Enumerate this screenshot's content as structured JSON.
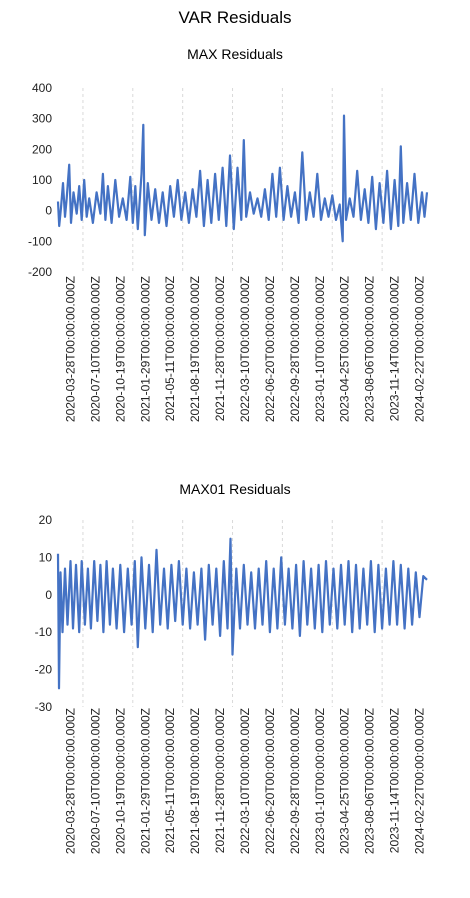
{
  "figure_title": "VAR Residuals",
  "chart_data": [
    {
      "type": "line",
      "title": "MAX Residuals",
      "series_color": "#4472C4",
      "ylim": [
        -200,
        400
      ],
      "yticks": [
        400,
        300,
        200,
        100,
        0,
        -100,
        -200
      ],
      "grid": "vertical dashed",
      "xticks": [
        "2020-03-28T00:00:00.000Z",
        "2020-07-10T00:00:00.000Z",
        "2020-10-19T00:00:00.000Z",
        "2021-01-29T00:00:00.000Z",
        "2021-05-11T00:00:00.000Z",
        "2021-08-19T00:00:00.000Z",
        "2021-11-28T00:00:00.000Z",
        "2022-03-10T00:00:00.000Z",
        "2022-06-20T00:00:00.000Z",
        "2022-09-28T00:00:00.000Z",
        "2023-01-10T00:00:00.000Z",
        "2023-04-25T00:00:00.000Z",
        "2023-08-06T00:00:00.000Z",
        "2023-11-14T00:00:00.000Z",
        "2024-02-22T00:00:00.000Z"
      ],
      "points": [
        [
          0,
          30
        ],
        [
          0.05,
          -50
        ],
        [
          0.12,
          10
        ],
        [
          0.2,
          90
        ],
        [
          0.28,
          -20
        ],
        [
          0.35,
          40
        ],
        [
          0.45,
          150
        ],
        [
          0.52,
          -40
        ],
        [
          0.62,
          60
        ],
        [
          0.75,
          -10
        ],
        [
          0.85,
          80
        ],
        [
          0.95,
          -30
        ],
        [
          1.05,
          100
        ],
        [
          1.15,
          -20
        ],
        [
          1.25,
          40
        ],
        [
          1.4,
          -40
        ],
        [
          1.55,
          60
        ],
        [
          1.7,
          -10
        ],
        [
          1.8,
          120
        ],
        [
          1.9,
          -30
        ],
        [
          2.0,
          80
        ],
        [
          2.15,
          -40
        ],
        [
          2.3,
          100
        ],
        [
          2.45,
          -20
        ],
        [
          2.6,
          40
        ],
        [
          2.75,
          -30
        ],
        [
          2.9,
          110
        ],
        [
          3.0,
          -40
        ],
        [
          3.1,
          80
        ],
        [
          3.2,
          -60
        ],
        [
          3.35,
          120
        ],
        [
          3.42,
          280
        ],
        [
          3.48,
          -80
        ],
        [
          3.6,
          90
        ],
        [
          3.75,
          -30
        ],
        [
          3.9,
          70
        ],
        [
          4.05,
          -40
        ],
        [
          4.2,
          60
        ],
        [
          4.35,
          -50
        ],
        [
          4.5,
          80
        ],
        [
          4.65,
          -20
        ],
        [
          4.8,
          100
        ],
        [
          4.95,
          -30
        ],
        [
          5.1,
          60
        ],
        [
          5.25,
          -40
        ],
        [
          5.4,
          70
        ],
        [
          5.55,
          -20
        ],
        [
          5.7,
          130
        ],
        [
          5.85,
          -50
        ],
        [
          6.0,
          100
        ],
        [
          6.15,
          -40
        ],
        [
          6.3,
          120
        ],
        [
          6.45,
          -30
        ],
        [
          6.6,
          140
        ],
        [
          6.75,
          -50
        ],
        [
          6.9,
          180
        ],
        [
          7.05,
          -60
        ],
        [
          7.2,
          140
        ],
        [
          7.35,
          -30
        ],
        [
          7.45,
          230
        ],
        [
          7.55,
          -20
        ],
        [
          7.7,
          60
        ],
        [
          7.85,
          -10
        ],
        [
          8.0,
          40
        ],
        [
          8.15,
          -20
        ],
        [
          8.3,
          70
        ],
        [
          8.45,
          -30
        ],
        [
          8.6,
          120
        ],
        [
          8.75,
          -20
        ],
        [
          8.9,
          140
        ],
        [
          9.05,
          -30
        ],
        [
          9.2,
          80
        ],
        [
          9.35,
          -20
        ],
        [
          9.5,
          60
        ],
        [
          9.65,
          -40
        ],
        [
          9.8,
          190
        ],
        [
          9.95,
          -30
        ],
        [
          10.1,
          60
        ],
        [
          10.25,
          -20
        ],
        [
          10.4,
          120
        ],
        [
          10.55,
          -30
        ],
        [
          10.7,
          40
        ],
        [
          10.85,
          -20
        ],
        [
          11.0,
          50
        ],
        [
          11.15,
          -30
        ],
        [
          11.3,
          20
        ],
        [
          11.42,
          -100
        ],
        [
          11.47,
          310
        ],
        [
          11.55,
          -30
        ],
        [
          11.7,
          40
        ],
        [
          11.85,
          -20
        ],
        [
          12.0,
          130
        ],
        [
          12.15,
          -30
        ],
        [
          12.3,
          70
        ],
        [
          12.45,
          -40
        ],
        [
          12.6,
          110
        ],
        [
          12.75,
          -60
        ],
        [
          12.9,
          90
        ],
        [
          13.05,
          -40
        ],
        [
          13.2,
          130
        ],
        [
          13.35,
          -60
        ],
        [
          13.5,
          100
        ],
        [
          13.65,
          -50
        ],
        [
          13.75,
          210
        ],
        [
          13.85,
          -40
        ],
        [
          14.0,
          90
        ],
        [
          14.15,
          -30
        ],
        [
          14.3,
          120
        ],
        [
          14.45,
          -40
        ],
        [
          14.6,
          60
        ],
        [
          14.7,
          -20
        ],
        [
          14.8,
          60
        ]
      ]
    },
    {
      "type": "line",
      "title": "MAX01 Residuals",
      "series_color": "#4472C4",
      "ylim": [
        -30,
        20
      ],
      "yticks": [
        20,
        10,
        0,
        -10,
        -20,
        -30
      ],
      "grid": "vertical dashed",
      "xticks": [
        "2020-03-28T00:00:00.000Z",
        "2020-07-10T00:00:00.000Z",
        "2020-10-19T00:00:00.000Z",
        "2021-01-29T00:00:00.000Z",
        "2021-05-11T00:00:00.000Z",
        "2021-08-19T00:00:00.000Z",
        "2021-11-28T00:00:00.000Z",
        "2022-03-10T00:00:00.000Z",
        "2022-06-20T00:00:00.000Z",
        "2022-09-28T00:00:00.000Z",
        "2023-01-10T00:00:00.000Z",
        "2023-04-25T00:00:00.000Z",
        "2023-08-06T00:00:00.000Z",
        "2023-11-14T00:00:00.000Z",
        "2024-02-22T00:00:00.000Z"
      ],
      "points": [
        [
          0,
          11
        ],
        [
          0.04,
          -25
        ],
        [
          0.1,
          6
        ],
        [
          0.18,
          -10
        ],
        [
          0.28,
          7
        ],
        [
          0.38,
          -8
        ],
        [
          0.5,
          9
        ],
        [
          0.6,
          -9
        ],
        [
          0.72,
          8
        ],
        [
          0.85,
          -10
        ],
        [
          0.95,
          9
        ],
        [
          1.08,
          -8
        ],
        [
          1.2,
          7
        ],
        [
          1.32,
          -9
        ],
        [
          1.45,
          9
        ],
        [
          1.58,
          -7
        ],
        [
          1.7,
          8
        ],
        [
          1.82,
          -10
        ],
        [
          1.95,
          9
        ],
        [
          2.08,
          -8
        ],
        [
          2.2,
          7
        ],
        [
          2.35,
          -9
        ],
        [
          2.5,
          8
        ],
        [
          2.65,
          -10
        ],
        [
          2.8,
          7
        ],
        [
          2.95,
          -8
        ],
        [
          3.08,
          9
        ],
        [
          3.2,
          -14
        ],
        [
          3.35,
          10
        ],
        [
          3.5,
          -9
        ],
        [
          3.65,
          8
        ],
        [
          3.8,
          -10
        ],
        [
          3.95,
          12
        ],
        [
          4.1,
          -8
        ],
        [
          4.25,
          7
        ],
        [
          4.4,
          -9
        ],
        [
          4.55,
          8
        ],
        [
          4.7,
          -7
        ],
        [
          4.85,
          9
        ],
        [
          5.0,
          -8
        ],
        [
          5.15,
          7
        ],
        [
          5.3,
          -9
        ],
        [
          5.45,
          6
        ],
        [
          5.6,
          -8
        ],
        [
          5.75,
          7
        ],
        [
          5.9,
          -12
        ],
        [
          6.05,
          8
        ],
        [
          6.2,
          -8
        ],
        [
          6.35,
          7
        ],
        [
          6.5,
          -11
        ],
        [
          6.65,
          9
        ],
        [
          6.8,
          -9
        ],
        [
          6.92,
          15
        ],
        [
          7.0,
          -16
        ],
        [
          7.15,
          7
        ],
        [
          7.3,
          -9
        ],
        [
          7.45,
          8
        ],
        [
          7.6,
          -8
        ],
        [
          7.75,
          6
        ],
        [
          7.9,
          -9
        ],
        [
          8.05,
          7
        ],
        [
          8.2,
          -8
        ],
        [
          8.35,
          9
        ],
        [
          8.5,
          -10
        ],
        [
          8.65,
          7
        ],
        [
          8.8,
          -9
        ],
        [
          8.95,
          10
        ],
        [
          9.1,
          -8
        ],
        [
          9.25,
          7
        ],
        [
          9.4,
          -9
        ],
        [
          9.55,
          8
        ],
        [
          9.7,
          -11
        ],
        [
          9.85,
          9
        ],
        [
          10.0,
          -8
        ],
        [
          10.15,
          7
        ],
        [
          10.3,
          -9
        ],
        [
          10.45,
          8
        ],
        [
          10.6,
          -10
        ],
        [
          10.75,
          9
        ],
        [
          10.9,
          -8
        ],
        [
          11.05,
          7
        ],
        [
          11.2,
          -9
        ],
        [
          11.35,
          8
        ],
        [
          11.5,
          -8
        ],
        [
          11.65,
          9
        ],
        [
          11.8,
          -10
        ],
        [
          11.95,
          8
        ],
        [
          12.1,
          -9
        ],
        [
          12.25,
          7
        ],
        [
          12.4,
          -8
        ],
        [
          12.55,
          9
        ],
        [
          12.7,
          -10
        ],
        [
          12.85,
          8
        ],
        [
          13.0,
          -9
        ],
        [
          13.15,
          7
        ],
        [
          13.3,
          -8
        ],
        [
          13.45,
          9
        ],
        [
          13.6,
          -8
        ],
        [
          13.75,
          8
        ],
        [
          13.9,
          -9
        ],
        [
          14.05,
          7
        ],
        [
          14.2,
          -8
        ],
        [
          14.35,
          6
        ],
        [
          14.5,
          -6
        ],
        [
          14.65,
          5
        ],
        [
          14.8,
          4
        ]
      ]
    }
  ]
}
